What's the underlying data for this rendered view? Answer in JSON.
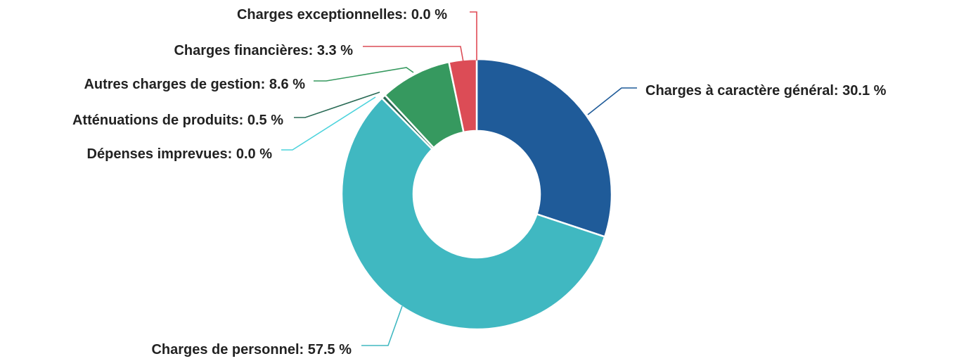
{
  "chart_data": {
    "type": "pie",
    "donut": true,
    "slices": [
      {
        "label": "Charges à caractère général",
        "value": 30.1,
        "display": "30.1 %",
        "color": "#1f5b99"
      },
      {
        "label": "Charges de personnel",
        "value": 57.5,
        "display": "57.5 %",
        "color": "#40b8c1"
      },
      {
        "label": "Dépenses imprevues",
        "value": 0.0,
        "display": "0.0 %",
        "color": "#4cd3dc"
      },
      {
        "label": "Atténuations de produits",
        "value": 0.5,
        "display": "0.5 %",
        "color": "#2a6b56"
      },
      {
        "label": "Autres charges de gestion",
        "value": 8.6,
        "display": "8.6 %",
        "color": "#36995f"
      },
      {
        "label": "Charges financières",
        "value": 3.3,
        "display": "3.3 %",
        "color": "#dc4c56"
      },
      {
        "label": "Charges exceptionnelles",
        "value": 0.0,
        "display": "0.0 %",
        "color": "#e04a55"
      }
    ],
    "label_format": "{label}: {value}",
    "legend": "none"
  }
}
